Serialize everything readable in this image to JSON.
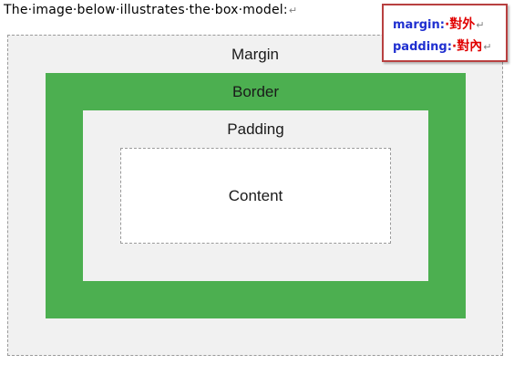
{
  "intro_text": "The·image·below·illustrates·the·box·model:",
  "pilcrow": "↵",
  "diagram": {
    "margin_label": "Margin",
    "border_label": "Border",
    "padding_label": "Padding",
    "content_label": "Content",
    "colors": {
      "outer_fill": "#f1f1f1",
      "border_fill": "#4caf50",
      "content_fill": "#ffffff",
      "dashed_outline": "#9a9a9a"
    }
  },
  "note": {
    "rows": [
      {
        "key": "margin:",
        "value": "·對外",
        "mark": "↵"
      },
      {
        "key": "padding:",
        "value": "·對內",
        "mark": "↵"
      }
    ],
    "colors": {
      "frame": "#b84040",
      "key": "#1f2fd0",
      "value": "#e00000"
    }
  }
}
